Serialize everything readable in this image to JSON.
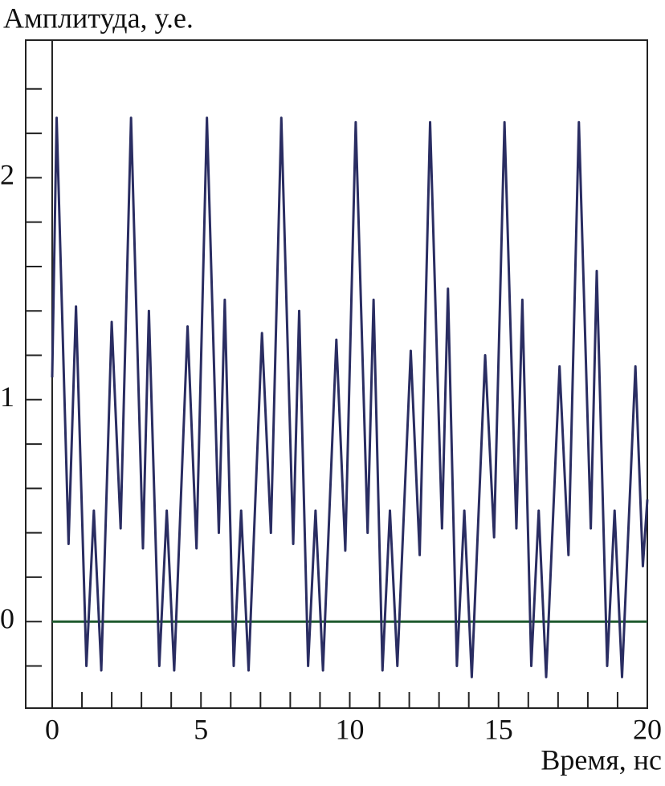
{
  "chart_data": {
    "type": "line",
    "y_label": "Амплитуда, у.е.",
    "x_label": "Время, нс",
    "xlim": [
      -0.89,
      20
    ],
    "ylim": [
      -0.39,
      2.62
    ],
    "xticks": [
      0,
      5,
      10,
      15,
      20
    ],
    "yticks": [
      0,
      1,
      2
    ],
    "x_minor_ticks": [
      1,
      2,
      3,
      4,
      6,
      7,
      8,
      9,
      11,
      12,
      13,
      14,
      16,
      17,
      18,
      19
    ],
    "y_minor_ticks": [
      -0.2,
      0.2,
      0.4,
      0.6,
      0.8,
      1.2,
      1.4,
      1.6,
      1.8,
      2.2,
      2.4
    ],
    "zero_line_color": "#1f5a2e",
    "series": [
      {
        "color": "#2a2d62",
        "x": [
          0,
          0.15,
          0.55,
          0.8,
          1.15,
          1.4,
          1.65,
          2.0,
          2.3,
          2.65,
          3.05,
          3.25,
          3.6,
          3.85,
          4.1,
          4.55,
          4.85,
          5.2,
          5.6,
          5.8,
          6.1,
          6.35,
          6.6,
          7.05,
          7.35,
          7.7,
          8.1,
          8.3,
          8.6,
          8.85,
          9.1,
          9.55,
          9.85,
          10.2,
          10.6,
          10.8,
          11.1,
          11.35,
          11.6,
          12.05,
          12.35,
          12.7,
          13.1,
          13.3,
          13.6,
          13.85,
          14.1,
          14.55,
          14.85,
          15.2,
          15.6,
          15.8,
          16.1,
          16.35,
          16.6,
          17.05,
          17.35,
          17.7,
          18.1,
          18.3,
          18.65,
          18.9,
          19.15,
          19.6,
          19.85,
          20
        ],
        "values": [
          1.1,
          2.27,
          0.35,
          1.42,
          -0.2,
          0.5,
          -0.22,
          1.35,
          0.42,
          2.27,
          0.33,
          1.4,
          -0.2,
          0.5,
          -0.22,
          1.33,
          0.33,
          2.27,
          0.4,
          1.45,
          -0.2,
          0.5,
          -0.22,
          1.3,
          0.4,
          2.27,
          0.35,
          1.4,
          -0.2,
          0.5,
          -0.22,
          1.27,
          0.32,
          2.25,
          0.4,
          1.45,
          -0.22,
          0.5,
          -0.2,
          1.22,
          0.3,
          2.25,
          0.42,
          1.5,
          -0.2,
          0.5,
          -0.25,
          1.2,
          0.38,
          2.25,
          0.42,
          1.45,
          -0.2,
          0.5,
          -0.25,
          1.15,
          0.3,
          2.25,
          0.42,
          1.58,
          -0.2,
          0.5,
          -0.25,
          1.15,
          0.25,
          0.55
        ]
      }
    ]
  }
}
